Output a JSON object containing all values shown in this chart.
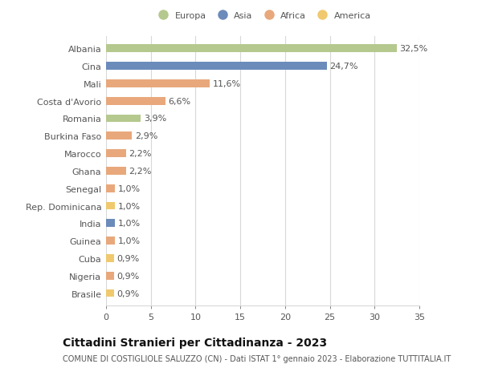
{
  "countries": [
    "Albania",
    "Cina",
    "Mali",
    "Costa d'Avorio",
    "Romania",
    "Burkina Faso",
    "Marocco",
    "Ghana",
    "Senegal",
    "Rep. Dominicana",
    "India",
    "Guinea",
    "Cuba",
    "Nigeria",
    "Brasile"
  ],
  "values": [
    32.5,
    24.7,
    11.6,
    6.6,
    3.9,
    2.9,
    2.2,
    2.2,
    1.0,
    1.0,
    1.0,
    1.0,
    0.9,
    0.9,
    0.9
  ],
  "labels": [
    "32,5%",
    "24,7%",
    "11,6%",
    "6,6%",
    "3,9%",
    "2,9%",
    "2,2%",
    "2,2%",
    "1,0%",
    "1,0%",
    "1,0%",
    "1,0%",
    "0,9%",
    "0,9%",
    "0,9%"
  ],
  "colors": [
    "#b5c98e",
    "#6b8cba",
    "#e8a87c",
    "#e8a87c",
    "#b5c98e",
    "#e8a87c",
    "#e8a87c",
    "#e8a87c",
    "#e8a87c",
    "#f0c96e",
    "#6b8cba",
    "#e8a87c",
    "#f0c96e",
    "#e8a87c",
    "#f0c96e"
  ],
  "legend_labels": [
    "Europa",
    "Asia",
    "Africa",
    "America"
  ],
  "legend_colors": [
    "#b5c98e",
    "#6b8cba",
    "#e8a87c",
    "#f0c96e"
  ],
  "title": "Cittadini Stranieri per Cittadinanza - 2023",
  "subtitle": "COMUNE DI COSTIGLIOLE SALUZZO (CN) - Dati ISTAT 1° gennaio 2023 - Elaborazione TUTTITALIA.IT",
  "xlim": [
    0,
    35
  ],
  "xticks": [
    0,
    5,
    10,
    15,
    20,
    25,
    30,
    35
  ],
  "bg_color": "#ffffff",
  "grid_color": "#d8d8d8",
  "bar_height": 0.45,
  "label_fontsize": 8,
  "tick_fontsize": 8,
  "title_fontsize": 10,
  "subtitle_fontsize": 7
}
